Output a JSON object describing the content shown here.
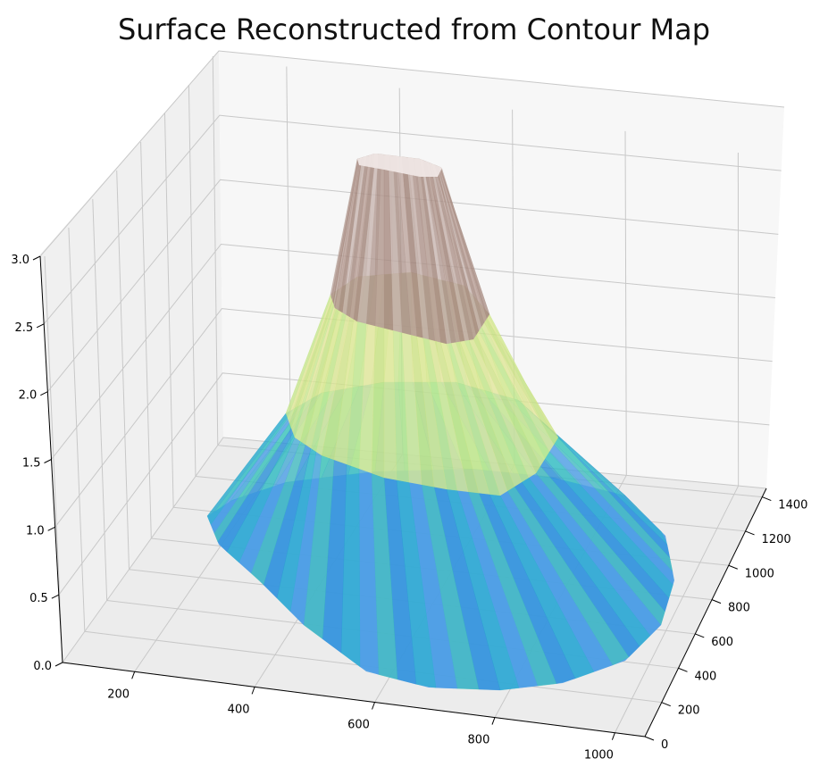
{
  "chart_data": {
    "type": "surface3d",
    "title": "Surface Reconstructed from Contour Map",
    "xlabel": "",
    "ylabel": "",
    "zlabel": "",
    "x_ticks": [
      "200",
      "400",
      "600",
      "800",
      "1000"
    ],
    "y_ticks": [
      "0",
      "200",
      "400",
      "600",
      "800",
      "1000",
      "1200",
      "1400"
    ],
    "z_ticks": [
      "0.0",
      "0.5",
      "1.0",
      "1.5",
      "2.0",
      "2.5",
      "3.0"
    ],
    "xlim": [
      80,
      1050
    ],
    "ylim": [
      0,
      1450
    ],
    "zlim": [
      0,
      3
    ],
    "grid": true,
    "colormap": "terrain",
    "contour_levels": [
      {
        "z": 1,
        "color": "#4a9de6"
      },
      {
        "z": 2,
        "color": "#bff28e"
      },
      {
        "z": 3,
        "color": "#eee5e3"
      }
    ]
  }
}
